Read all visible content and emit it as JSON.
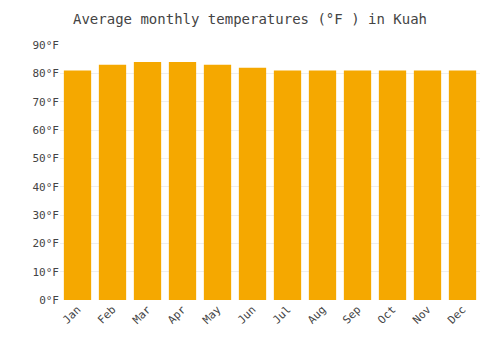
{
  "chart_data": {
    "type": "bar",
    "title": "Average monthly temperatures (°F ) in Kuah",
    "categories": [
      "Jan",
      "Feb",
      "Mar",
      "Apr",
      "May",
      "Jun",
      "Jul",
      "Aug",
      "Sep",
      "Oct",
      "Nov",
      "Dec"
    ],
    "values": [
      81,
      83,
      84,
      84,
      83,
      82,
      81,
      81,
      81,
      81,
      81,
      81
    ],
    "color": "#F5A800",
    "ylim": [
      0,
      90
    ],
    "yticks": [
      {
        "value": 0,
        "label": "0°F"
      },
      {
        "value": 10,
        "label": "10°F"
      },
      {
        "value": 20,
        "label": "20°F"
      },
      {
        "value": 30,
        "label": "30°F"
      },
      {
        "value": 40,
        "label": "40°F"
      },
      {
        "value": 50,
        "label": "50°F"
      },
      {
        "value": 60,
        "label": "60°F"
      },
      {
        "value": 70,
        "label": "70°F"
      },
      {
        "value": 80,
        "label": "80°F"
      },
      {
        "value": 90,
        "label": "90°F"
      }
    ],
    "grid": true
  }
}
